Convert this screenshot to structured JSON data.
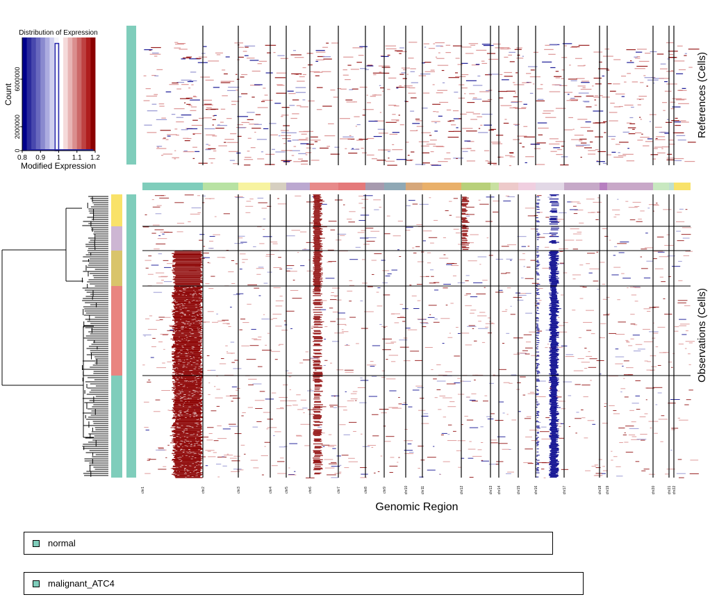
{
  "chart_data": [
    {
      "type": "bar",
      "title": "Distribution of Expression",
      "xlabel": "Modified Expression",
      "ylabel": "Count",
      "xlim": [
        0.8,
        1.2
      ],
      "ylim": [
        0,
        9500000
      ],
      "xticks": [
        "0.8",
        "0.9",
        "1",
        "1.1",
        "1.2"
      ],
      "yticks": [
        "0",
        "2000000",
        "6000000"
      ],
      "color_scale": [
        "#00008B",
        "#2A2A9C",
        "#4848AD",
        "#6868BE",
        "#8A8ACF",
        "#ACACE0",
        "#CFCFEF",
        "#F2F2F8",
        "#FFFFFF",
        "#F5DADA",
        "#E8B4B4",
        "#DA8E8E",
        "#CC6868",
        "#BE4242",
        "#AF1E1E",
        "#8B0000"
      ],
      "bins": [
        {
          "x": 0.99,
          "count": 9000000
        },
        {
          "x": 1.01,
          "count": 9000000
        }
      ]
    },
    {
      "type": "heatmap",
      "xlabel": "Genomic Region",
      "reference_label": "References (Cells)",
      "observation_label": "Observations (Cells)",
      "chromosomes": [
        "chr1",
        "chr2",
        "chr3",
        "chr4",
        "chr5",
        "chr6",
        "chr7",
        "chr8",
        "chr9",
        "chr10",
        "chr11",
        "chr12",
        "chr13",
        "chr14",
        "chr15",
        "chr16",
        "chr17",
        "chr18",
        "chr19",
        "chr20",
        "chr21",
        "chr22"
      ],
      "chromosome_colors": [
        "#7FCDBB",
        "#B8E2A3",
        "#F7F3A0",
        "#D6CFC0",
        "#BBA8D0",
        "#E78A8A",
        "#E4797A",
        "#A69AAE",
        "#8FA8B5",
        "#D6A77A",
        "#E9B06A",
        "#B8D07A",
        "#C8E0A0",
        "#EDCACA",
        "#F0CFE0",
        "#E2D8E6",
        "#C6A9C8",
        "#B77FC0",
        "#C8A8C8",
        "#C8E8C0",
        "#BFE0CF",
        "#F8E26A"
      ],
      "cnv_events": [
        {
          "chromosome": "chr1",
          "region": "q-arm",
          "direction": "gain"
        },
        {
          "chromosome": "chr6",
          "region": "p-arm",
          "direction": "gain"
        },
        {
          "chromosome": "chr12",
          "region": "p-arm",
          "direction": "gain"
        },
        {
          "chromosome": "chr16",
          "region": "partial",
          "direction": "loss"
        }
      ]
    }
  ],
  "legends": [
    {
      "label": "normal",
      "color": "#7FCDBB"
    },
    {
      "label": "malignant_ATC4",
      "color": "#7FCDBB"
    }
  ]
}
